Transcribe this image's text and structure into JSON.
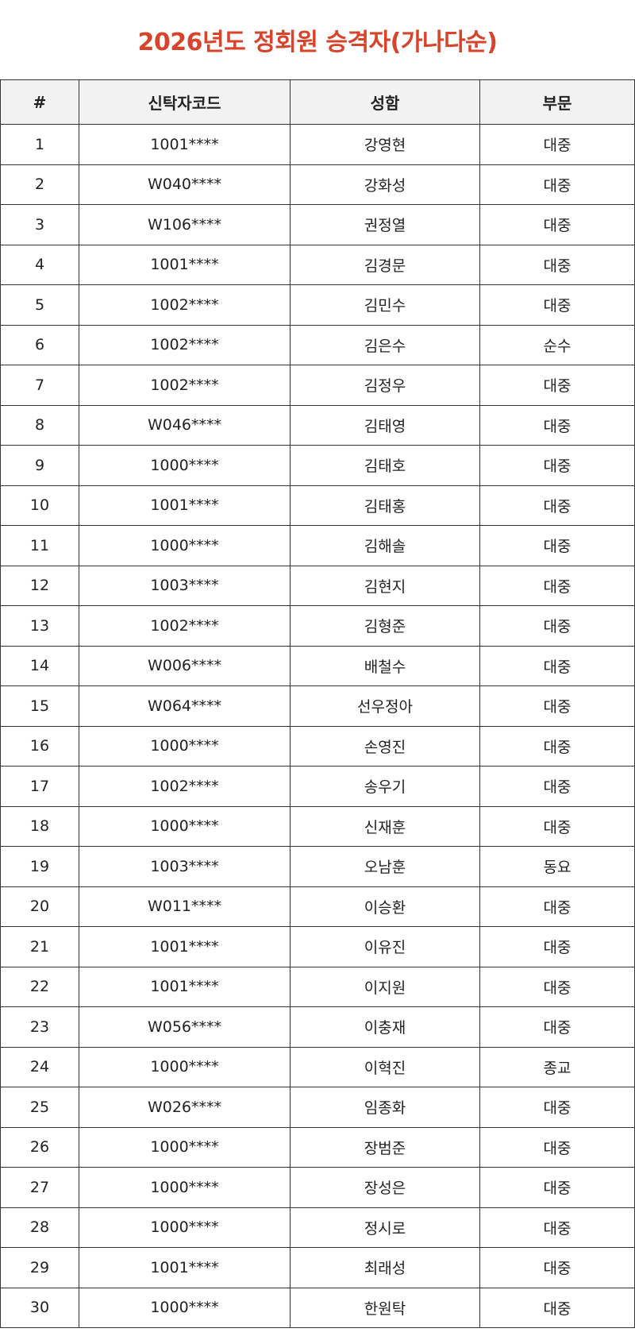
{
  "title": "2026년도 정회원 승격자(가나다순)",
  "colors": {
    "title": "#d8432b",
    "header_bg": "#f2f2f2",
    "border": "#333333"
  },
  "table": {
    "headers": [
      "#",
      "신탁자코드",
      "성함",
      "부문"
    ],
    "rows": [
      [
        "1",
        "1001****",
        "강영현",
        "대중"
      ],
      [
        "2",
        "W040****",
        "강화성",
        "대중"
      ],
      [
        "3",
        "W106****",
        "권정열",
        "대중"
      ],
      [
        "4",
        "1001****",
        "김경문",
        "대중"
      ],
      [
        "5",
        "1002****",
        "김민수",
        "대중"
      ],
      [
        "6",
        "1002****",
        "김은수",
        "순수"
      ],
      [
        "7",
        "1002****",
        "김정우",
        "대중"
      ],
      [
        "8",
        "W046****",
        "김태영",
        "대중"
      ],
      [
        "9",
        "1000****",
        "김태호",
        "대중"
      ],
      [
        "10",
        "1001****",
        "김태홍",
        "대중"
      ],
      [
        "11",
        "1000****",
        "김해솔",
        "대중"
      ],
      [
        "12",
        "1003****",
        "김현지",
        "대중"
      ],
      [
        "13",
        "1002****",
        "김형준",
        "대중"
      ],
      [
        "14",
        "W006****",
        "배철수",
        "대중"
      ],
      [
        "15",
        "W064****",
        "선우정아",
        "대중"
      ],
      [
        "16",
        "1000****",
        "손영진",
        "대중"
      ],
      [
        "17",
        "1002****",
        "송우기",
        "대중"
      ],
      [
        "18",
        "1000****",
        "신재훈",
        "대중"
      ],
      [
        "19",
        "1003****",
        "오남훈",
        "동요"
      ],
      [
        "20",
        "W011****",
        "이승환",
        "대중"
      ],
      [
        "21",
        "1001****",
        "이유진",
        "대중"
      ],
      [
        "22",
        "1001****",
        "이지원",
        "대중"
      ],
      [
        "23",
        "W056****",
        "이충재",
        "대중"
      ],
      [
        "24",
        "1000****",
        "이혁진",
        "종교"
      ],
      [
        "25",
        "W026****",
        "임종화",
        "대중"
      ],
      [
        "26",
        "1000****",
        "장범준",
        "대중"
      ],
      [
        "27",
        "1000****",
        "장성은",
        "대중"
      ],
      [
        "28",
        "1000****",
        "정시로",
        "대중"
      ],
      [
        "29",
        "1001****",
        "최래성",
        "대중"
      ],
      [
        "30",
        "1000****",
        "한원탁",
        "대중"
      ]
    ]
  }
}
